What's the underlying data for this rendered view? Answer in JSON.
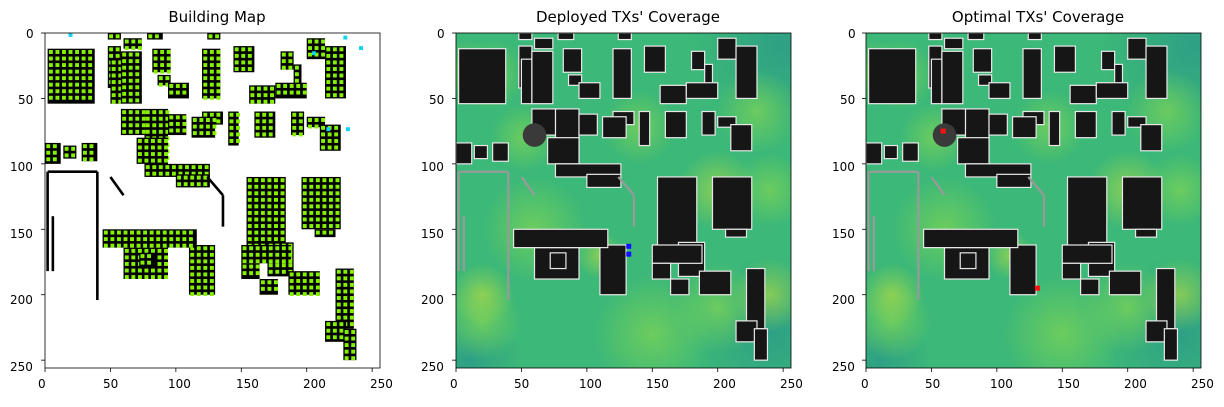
{
  "chart_data": [
    {
      "type": "heatmap",
      "title": "Building Map",
      "xlim": [
        0,
        255
      ],
      "ylim": [
        255,
        0
      ],
      "xticks": [
        "0",
        "50",
        "100",
        "150",
        "200",
        "250"
      ],
      "yticks": [
        "0",
        "50",
        "100",
        "150",
        "200",
        "250"
      ],
      "colors": {
        "background": "#ffffff",
        "building": "#000000",
        "tx_candidate": "#84f000",
        "tx_cyan": "#10d4f0"
      }
    },
    {
      "type": "heatmap",
      "title": "Deployed TXs' Coverage",
      "xlim": [
        0,
        255
      ],
      "ylim": [
        255,
        0
      ],
      "xticks": [
        "0",
        "50",
        "100",
        "150",
        "200",
        "250"
      ],
      "yticks": [
        "0",
        "50",
        "100",
        "150",
        "200",
        "250"
      ],
      "tx_points": [
        {
          "x": 132,
          "y": 163
        },
        {
          "x": 132,
          "y": 169
        }
      ],
      "colors": {
        "field": "#3cb878",
        "building": "#161616",
        "tx": "#1010ff"
      }
    },
    {
      "type": "heatmap",
      "title": "Optimal TXs' Coverage",
      "xlim": [
        0,
        255
      ],
      "ylim": [
        255,
        0
      ],
      "xticks": [
        "0",
        "50",
        "100",
        "150",
        "200",
        "250"
      ],
      "yticks": [
        "0",
        "50",
        "100",
        "150",
        "200",
        "250"
      ],
      "tx_points": [
        {
          "x": 59,
          "y": 75
        },
        {
          "x": 131,
          "y": 195
        }
      ],
      "colors": {
        "field": "#3cb878",
        "building": "#161616",
        "tx": "#ff1010"
      }
    }
  ]
}
